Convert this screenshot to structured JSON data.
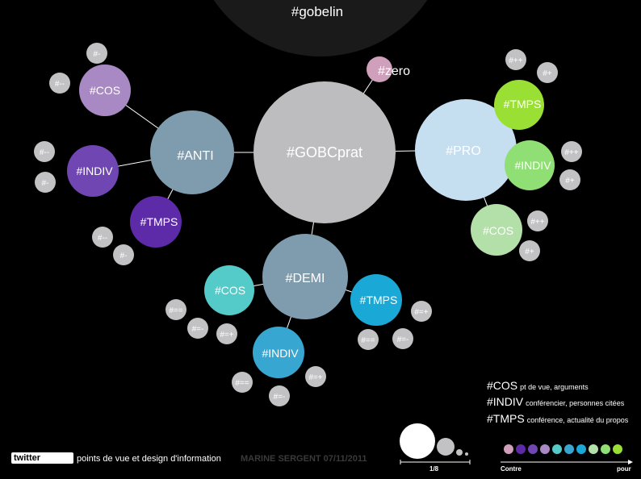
{
  "title": "#gobelin",
  "center": "#GOBCprat",
  "zero": "#zero",
  "main_nodes": {
    "anti": "#ANTI",
    "pro": "#PRO",
    "demi": "#DEMI"
  },
  "sub_nodes": {
    "anti_cos": "#COS",
    "anti_indiv": "#INDIV",
    "anti_tmps": "#TMPS",
    "pro_tmps": "#TMPS",
    "pro_indiv": "#INDIV",
    "pro_cos": "#COS",
    "demi_cos": "#COS",
    "demi_tmps": "#TMPS",
    "demi_indiv": "#INDIV"
  },
  "small_nodes": {
    "a1": "#-",
    "a2": "#--",
    "a3": "#--",
    "a4": "#-",
    "a5": "#--",
    "a6": "#-",
    "p1": "#++",
    "p2": "#+",
    "p3": "#++",
    "p4": "#+",
    "p5": "#++",
    "p6": "#+",
    "d1": "#==",
    "d2": "#=-",
    "d3": "#=+",
    "d4": "#=+",
    "d5": "#==",
    "d6": "#=-",
    "d7": "#==",
    "d8": "#=-",
    "d9": "#=+"
  },
  "legend": [
    {
      "tag": "#COS",
      "desc": "pt de vue, arguments"
    },
    {
      "tag": "#INDIV",
      "desc": "conférencier, personnes citées"
    },
    {
      "tag": "#TMPS",
      "desc": "conférence, actualité du propos"
    }
  ],
  "footer": {
    "logo": "twitter",
    "subtitle": "points de vue et design d'information",
    "author": "MARINE SERGENT  07/11/2011",
    "scale_label": "1/8",
    "axis_left": "Contre",
    "axis_right": "pour"
  },
  "colors": {
    "center": "#bdbdbf",
    "main": "#7e9cae",
    "pro": "#c5def0",
    "zero": "#cf9fbb",
    "small": "#c2c2c4",
    "anti_cos": "#a889c4",
    "anti_indiv": "#7046b3",
    "anti_tmps": "#5d2aa8",
    "pro_tmps": "#9ae034",
    "pro_indiv": "#8fdf74",
    "pro_cos": "#b3e0a8",
    "demi_cos": "#54cbc9",
    "demi_tmps": "#1aa8d6",
    "demi_indiv": "#37a6d1",
    "scale": [
      "#cf9fbb",
      "#5d2aa8",
      "#7046b3",
      "#a889c4",
      "#54cbc9",
      "#37a6d1",
      "#1aa8d6",
      "#b3e0a8",
      "#8fdf74",
      "#9ae034"
    ]
  }
}
